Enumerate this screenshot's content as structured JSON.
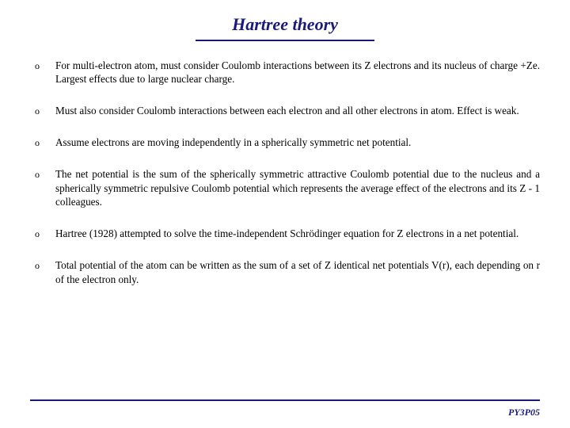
{
  "title": "Hartree theory",
  "bullets": [
    "For multi-electron atom, must consider Coulomb interactions between its Z electrons and its nucleus of charge +Ze. Largest effects due to large nuclear charge.",
    "Must also consider Coulomb interactions between each electron and all other electrons in atom. Effect is weak.",
    "Assume electrons are moving independently in a spherically symmetric net potential.",
    "The net potential is the sum of the spherically symmetric attractive Coulomb potential due to the nucleus and a spherically symmetric repulsive Coulomb potential which represents the average effect of the electrons and its Z - 1 colleagues.",
    "Hartree (1928) attempted to solve the time-independent Schrödinger equation for Z electrons in a net potential.",
    "Total potential of the atom can be written as the sum of a set of Z identical net potentials V(r), each depending on r of the electron only."
  ],
  "footer": "PY3P05",
  "colors": {
    "accent": "#1a1a7a",
    "text": "#000000",
    "background": "#ffffff"
  },
  "bullet_marker": "o"
}
